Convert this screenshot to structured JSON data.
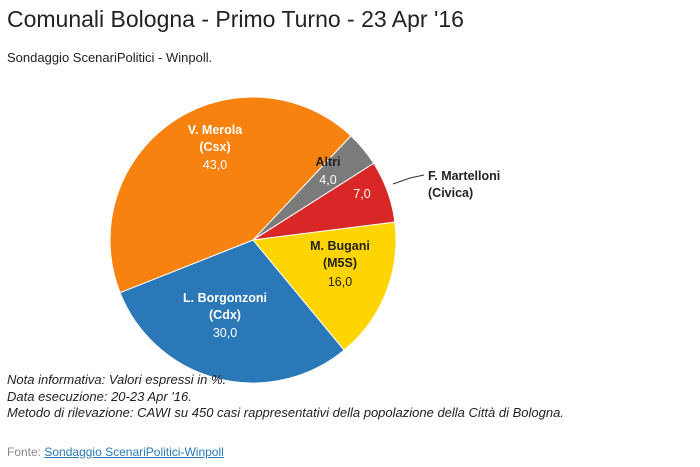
{
  "chart_data": {
    "type": "pie",
    "title": "Comunali Bologna - Primo Turno - 23 Apr '16",
    "subtitle": "Sondaggio ScenariPolitici - Winpoll.",
    "categories": [
      "Altri",
      "F. Martelloni\n(Civica)",
      "M. Bugani\n(M5S)",
      "L. Borgonzoni\n(Cdx)",
      "V. Merola\n(Csx)"
    ],
    "values": [
      4,
      7,
      16,
      30,
      43
    ],
    "value_labels": [
      "4,0",
      "7,0",
      "16,0",
      "30,0",
      "43,0"
    ],
    "colors": [
      "#7b7b7b",
      "#d92626",
      "#ffd500",
      "#2b78b8",
      "#f7820f"
    ]
  },
  "notes": [
    "Nota informativa: Valori espressi in %.",
    "Data esecuzione: 20-23 Apr '16.",
    "Metodo di rilevazione: CAWI su 450 casi rappresentativi della popolazione della Città di Bologna."
  ],
  "footer": {
    "prefix": "Fonte:",
    "link": "Sondaggio ScenariPolitici-Winpoll"
  }
}
